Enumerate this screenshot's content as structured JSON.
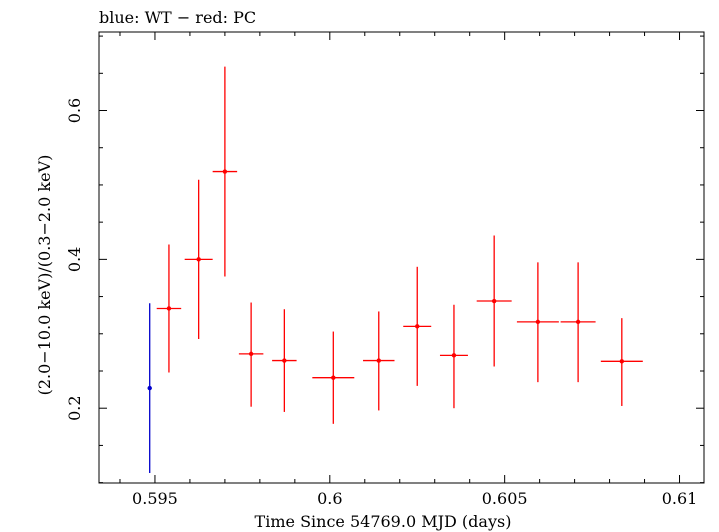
{
  "chart_data": {
    "type": "scatter",
    "title": "blue: WT − red: PC",
    "xlabel": "Time Since 54769.0 MJD (days)",
    "ylabel": "(2.0−10.0 keV)/(0.3−2.0 keV)",
    "xlim": [
      0.5934,
      0.6107
    ],
    "ylim": [
      0.0995,
      0.7055
    ],
    "x_ticks": [
      0.595,
      0.6,
      0.605,
      0.61
    ],
    "x_tick_labels": [
      "0.595",
      "0.6",
      "0.605",
      "0.61"
    ],
    "y_ticks": [
      0.2,
      0.4,
      0.6
    ],
    "y_tick_labels": [
      "0.2",
      "0.4",
      "0.6"
    ],
    "series": [
      {
        "name": "WT",
        "color": "#0000cc",
        "points": [
          {
            "x": 0.59485,
            "y": 0.227,
            "xerr": 0.0,
            "ylo": 0.113,
            "yhi": 0.341
          }
        ]
      },
      {
        "name": "PC",
        "color": "#ff0000",
        "points": [
          {
            "x": 0.5954,
            "y": 0.334,
            "xerr": 0.00035,
            "ylo": 0.248,
            "yhi": 0.42
          },
          {
            "x": 0.59625,
            "y": 0.4,
            "xerr": 0.0004,
            "ylo": 0.293,
            "yhi": 0.507
          },
          {
            "x": 0.597,
            "y": 0.518,
            "xerr": 0.00035,
            "ylo": 0.377,
            "yhi": 0.659
          },
          {
            "x": 0.59775,
            "y": 0.273,
            "xerr": 0.00035,
            "ylo": 0.202,
            "yhi": 0.342
          },
          {
            "x": 0.5987,
            "y": 0.264,
            "xerr": 0.00035,
            "ylo": 0.195,
            "yhi": 0.333
          },
          {
            "x": 0.6001,
            "y": 0.241,
            "xerr": 0.0006,
            "ylo": 0.179,
            "yhi": 0.303
          },
          {
            "x": 0.6014,
            "y": 0.264,
            "xerr": 0.00045,
            "ylo": 0.197,
            "yhi": 0.33
          },
          {
            "x": 0.6025,
            "y": 0.31,
            "xerr": 0.0004,
            "ylo": 0.23,
            "yhi": 0.39
          },
          {
            "x": 0.60355,
            "y": 0.271,
            "xerr": 0.0004,
            "ylo": 0.2,
            "yhi": 0.339
          },
          {
            "x": 0.6047,
            "y": 0.344,
            "xerr": 0.0005,
            "ylo": 0.256,
            "yhi": 0.432
          },
          {
            "x": 0.60595,
            "y": 0.316,
            "xerr": 0.0006,
            "ylo": 0.235,
            "yhi": 0.396
          },
          {
            "x": 0.6071,
            "y": 0.316,
            "xerr": 0.0005,
            "ylo": 0.235,
            "yhi": 0.396
          },
          {
            "x": 0.60835,
            "y": 0.263,
            "xerr": 0.0006,
            "ylo": 0.203,
            "yhi": 0.321
          }
        ]
      }
    ]
  }
}
